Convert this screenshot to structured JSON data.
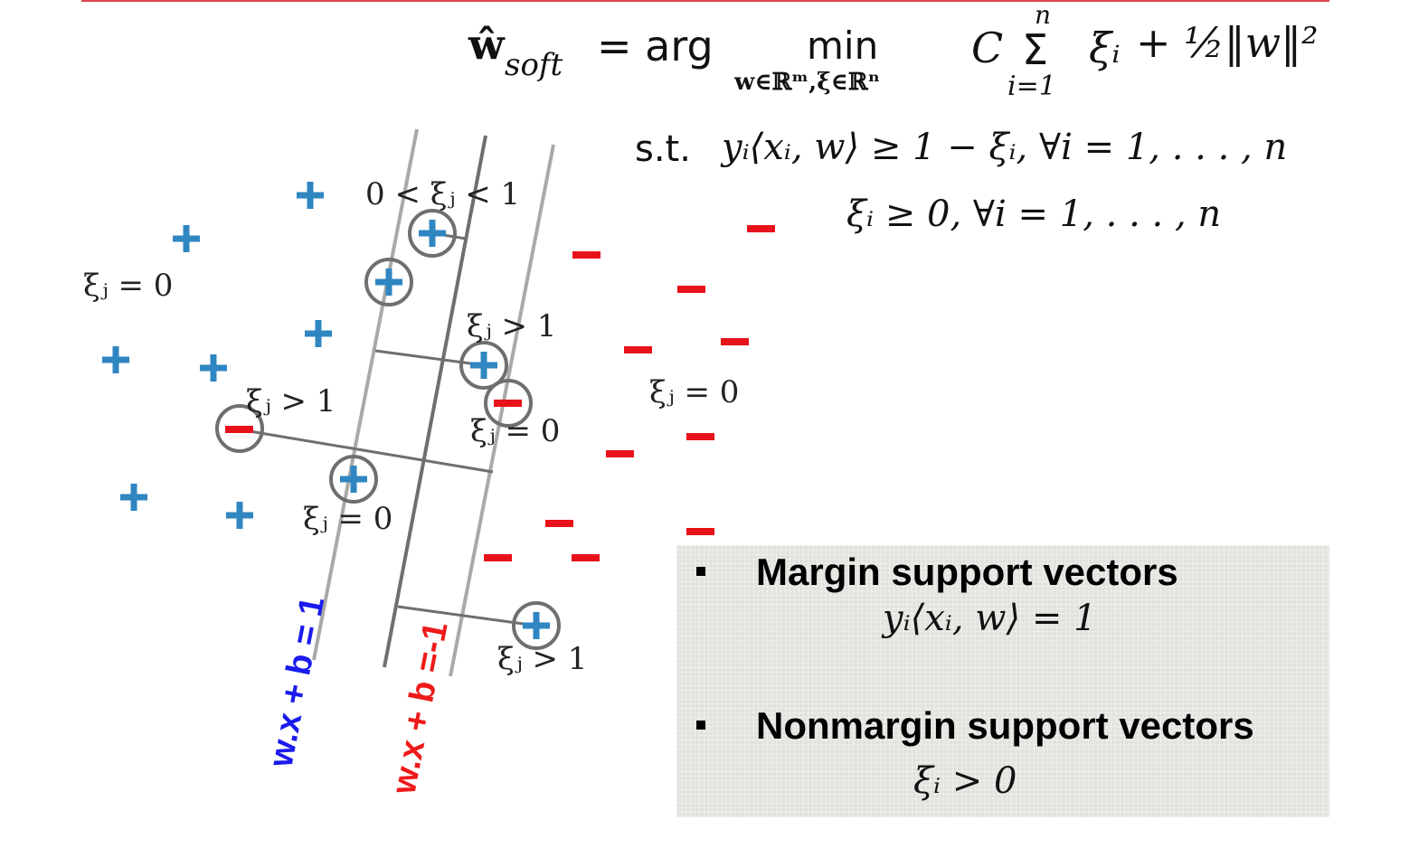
{
  "formula": {
    "w_hat": "ŵ",
    "w_hat_sub": "soft",
    "equals_arg": "= arg",
    "min": "min",
    "min_sub": "w∈ℝᵐ,ξ∈ℝⁿ",
    "C": "C",
    "sum_top": "n",
    "sum_sign": "Σ",
    "sum_bottom": "i=1",
    "xi_i": "ξᵢ",
    "plus_half": "+ ½‖w‖²",
    "st_label": "s.t.",
    "constraint1": "yᵢ⟨xᵢ, w⟩ ≥ 1 − ξᵢ, ∀i = 1, . . . , n",
    "constraint2": "ξᵢ ≥ 0, ∀i = 1, . . . , n"
  },
  "diagram": {
    "colors": {
      "plus": "#2f86c1",
      "minus": "#e8121b",
      "line_light": "#a9a9a6",
      "line_dark": "#6f6f6f",
      "circle": "#6f6f6f",
      "label_pos": "#1a1aee",
      "label_neg": "#ee1a1a"
    },
    "slack_labels": {
      "between": "0 < ξⱼ < 1",
      "zero_left": "ξⱼ = 0",
      "gt1_upper": "ξⱼ > 1",
      "gt1_left": "ξⱼ > 1",
      "zero_mid": "ξⱼ = 0",
      "zero_right": "ξⱼ = 0",
      "zero_lower": "ξⱼ = 0",
      "gt1_lower": "ξⱼ > 1"
    },
    "line_labels": {
      "positive_margin": "w.x + b = 1",
      "negative_margin": "w.x + b =-1"
    }
  },
  "legend": {
    "margin_title": "Margin support vectors",
    "margin_formula": "yᵢ⟨xᵢ, w⟩ = 1",
    "nonmargin_title": "Nonmargin support vectors",
    "nonmargin_formula": "ξᵢ > 0"
  }
}
